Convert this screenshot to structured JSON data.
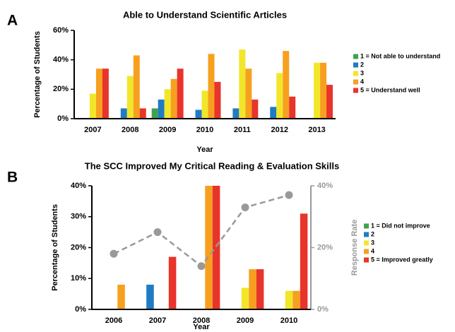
{
  "chart_data": [
    {
      "type": "bar",
      "panel_label": "A",
      "title": "Able to Understand Scientific Articles",
      "x_label": "Year",
      "y_label": "Percentage of Students",
      "categories": [
        "2007",
        "2008",
        "2009",
        "2010",
        "2011",
        "2012",
        "2013"
      ],
      "series": [
        {
          "name": "1 = Not able to understand",
          "color": "#3fa34d",
          "values": [
            0,
            0,
            7,
            0,
            0,
            0,
            0
          ]
        },
        {
          "name": "2",
          "color": "#1f7cc4",
          "values": [
            0,
            7,
            13,
            6,
            7,
            8,
            0
          ]
        },
        {
          "name": "3",
          "color": "#f2e62a",
          "values": [
            17,
            29,
            20,
            19,
            47,
            31,
            38
          ]
        },
        {
          "name": "4",
          "color": "#f7a020",
          "values": [
            34,
            43,
            27,
            44,
            34,
            46,
            38
          ]
        },
        {
          "name": "5 = Understand well",
          "color": "#e8342a",
          "values": [
            34,
            7,
            34,
            25,
            13,
            15,
            23
          ]
        }
      ],
      "ylim": [
        0,
        60
      ],
      "yticks": [
        {
          "value": 0,
          "label": "0%"
        },
        {
          "value": 20,
          "label": "20%"
        },
        {
          "value": 40,
          "label": "40%"
        },
        {
          "value": 60,
          "label": "60%"
        }
      ]
    },
    {
      "type": "bar",
      "panel_label": "B",
      "title": "The SCC Improved My Critical Reading & Evaluation Skills",
      "x_label": "Year",
      "y_label": "Percentage of Students",
      "y2_label": "Response Rate",
      "categories": [
        "2006",
        "2007",
        "2008",
        "2009",
        "2010"
      ],
      "series": [
        {
          "name": "1 = Did not improve",
          "color": "#3fa34d",
          "values": [
            0,
            0,
            0,
            0,
            0
          ]
        },
        {
          "name": "2",
          "color": "#1f7cc4",
          "values": [
            0,
            8,
            0,
            0,
            0
          ]
        },
        {
          "name": "3",
          "color": "#f2e62a",
          "values": [
            0,
            0,
            0,
            7,
            6
          ]
        },
        {
          "name": "4",
          "color": "#f7a020",
          "values": [
            8,
            0,
            40,
            13,
            6
          ]
        },
        {
          "name": "5 = Improved greatly",
          "color": "#e8342a",
          "values": [
            0,
            17,
            40,
            13,
            31
          ]
        },
        {
          "type": "line",
          "axis": "y2",
          "color": "#999999",
          "values": [
            18,
            25,
            14,
            33,
            37
          ]
        }
      ],
      "ylim": [
        0,
        40
      ],
      "yticks": [
        {
          "value": 0,
          "label": "0%"
        },
        {
          "value": 10,
          "label": "10%"
        },
        {
          "value": 20,
          "label": "20%"
        },
        {
          "value": 30,
          "label": "30%"
        },
        {
          "value": 40,
          "label": "40%"
        }
      ],
      "y2lim": [
        0,
        40
      ],
      "y2ticks": [
        {
          "value": 0,
          "label": "0%"
        },
        {
          "value": 20,
          "label": "20%"
        },
        {
          "value": 40,
          "label": "40%"
        }
      ]
    }
  ]
}
